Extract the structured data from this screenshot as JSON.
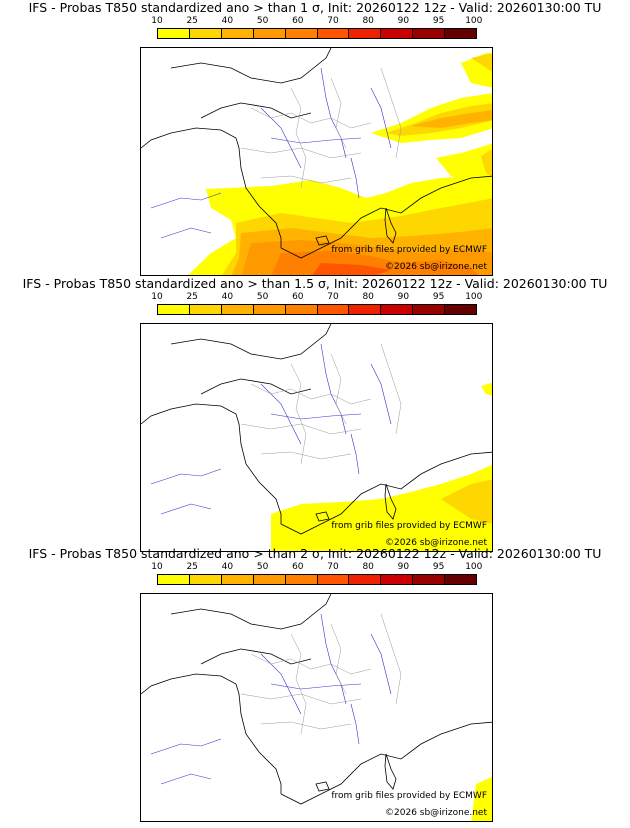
{
  "colorbar": {
    "ticks": [
      "10",
      "25",
      "40",
      "50",
      "60",
      "70",
      "80",
      "90",
      "95",
      "100"
    ],
    "colors": [
      "#ffff00",
      "#ffd700",
      "#ffb300",
      "#ff9900",
      "#ff7f00",
      "#ff5500",
      "#ee2200",
      "#cc0000",
      "#990000",
      "#660000"
    ]
  },
  "credits": {
    "source": "from grib files provided by ECMWF",
    "copyright": "©2026 sb@irizone.net"
  },
  "panels": [
    {
      "title": "IFS - Probas T850  standardized ano > than 1 σ, Init: 20260122 12z - Valid: 20260130:00 TU"
    },
    {
      "title": "IFS - Probas T850  standardized ano > than 1.5 σ, Init: 20260122 12z - Valid: 20260130:00 TU"
    },
    {
      "title": "IFS - Probas T850  standardized ano > than 2 σ, Init: 20260122 12z - Valid: 20260130:00 TU"
    }
  ]
}
